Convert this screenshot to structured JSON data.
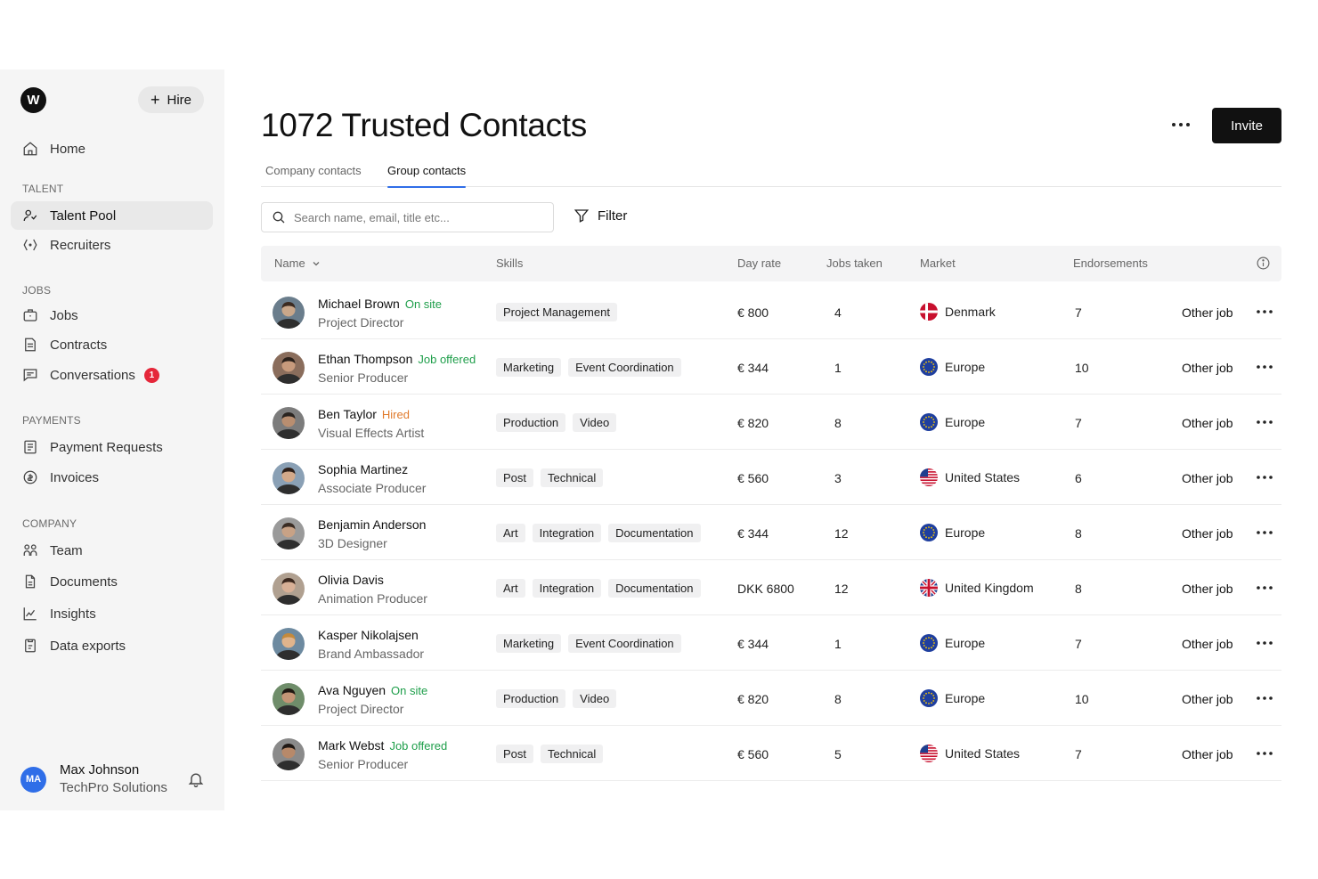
{
  "sidebar": {
    "logo_letter": "W",
    "hire_label": "Hire",
    "items": [
      {
        "label": "Home",
        "icon": "home-icon"
      },
      {
        "label": "Talent Pool",
        "icon": "talent-icon"
      },
      {
        "label": "Recruiters",
        "icon": "recruiters-icon"
      },
      {
        "label": "Jobs",
        "icon": "briefcase-icon"
      },
      {
        "label": "Contracts",
        "icon": "contract-icon"
      },
      {
        "label": "Conversations",
        "icon": "chat-icon",
        "badge": "1"
      },
      {
        "label": "Payment Requests",
        "icon": "payment-request-icon"
      },
      {
        "label": "Invoices",
        "icon": "invoice-icon"
      },
      {
        "label": "Team",
        "icon": "team-icon"
      },
      {
        "label": "Documents",
        "icon": "document-icon"
      },
      {
        "label": "Insights",
        "icon": "chart-icon"
      },
      {
        "label": "Data exports",
        "icon": "export-icon"
      }
    ],
    "sections": {
      "talent": "TALENT",
      "jobs": "JOBS",
      "payments": "PAYMENTS",
      "company": "COMPANY"
    },
    "user": {
      "initials": "MA",
      "name": "Max Johnson",
      "org": "TechPro Solutions"
    }
  },
  "header": {
    "title": "1072 Trusted Contacts",
    "invite_label": "Invite",
    "tabs": [
      {
        "label": "Company contacts",
        "active": false
      },
      {
        "label": "Group contacts",
        "active": true
      }
    ]
  },
  "toolbar": {
    "search_placeholder": "Search name, email, title etc...",
    "filter_label": "Filter"
  },
  "table": {
    "columns": {
      "name": "Name",
      "skills": "Skills",
      "day_rate": "Day rate",
      "jobs_taken": "Jobs taken",
      "market": "Market",
      "endorsements": "Endorsements"
    },
    "rows": [
      {
        "name": "Michael Brown",
        "status": "On site",
        "status_type": "onsite",
        "role": "Project Director",
        "skills": [
          "Project Management"
        ],
        "rate": "€ 800",
        "jobs": "4",
        "market": "Denmark",
        "flag": "dk",
        "endorsements": "7",
        "other": "Other job"
      },
      {
        "name": "Ethan Thompson",
        "status": "Job offered",
        "status_type": "offered",
        "role": "Senior Producer",
        "skills": [
          "Marketing",
          "Event Coordination"
        ],
        "rate": "€ 344",
        "jobs": "1",
        "market": "Europe",
        "flag": "eu",
        "endorsements": "10",
        "other": "Other job"
      },
      {
        "name": "Ben Taylor",
        "status": "Hired",
        "status_type": "hired",
        "role": "Visual Effects Artist",
        "skills": [
          "Production",
          "Video"
        ],
        "rate": "€ 820",
        "jobs": "8",
        "market": "Europe",
        "flag": "eu",
        "endorsements": "7",
        "other": "Other job"
      },
      {
        "name": "Sophia Martinez",
        "status": "",
        "status_type": "",
        "role": "Associate Producer",
        "skills": [
          "Post",
          "Technical"
        ],
        "rate": "€ 560",
        "jobs": "3",
        "market": "United States",
        "flag": "us",
        "endorsements": "6",
        "other": "Other job"
      },
      {
        "name": "Benjamin Anderson",
        "status": "",
        "status_type": "",
        "role": "3D Designer",
        "skills": [
          "Art",
          "Integration",
          "Documentation"
        ],
        "rate": "€ 344",
        "jobs": "12",
        "market": "Europe",
        "flag": "eu",
        "endorsements": "8",
        "other": "Other job"
      },
      {
        "name": "Olivia Davis",
        "status": "",
        "status_type": "",
        "role": "Animation Producer",
        "skills": [
          "Art",
          "Integration",
          "Documentation"
        ],
        "rate": "DKK 6800",
        "jobs": "12",
        "market": "United Kingdom",
        "flag": "uk",
        "endorsements": "8",
        "other": "Other job"
      },
      {
        "name": "Kasper Nikolajsen",
        "status": "",
        "status_type": "",
        "role": "Brand Ambassador",
        "skills": [
          "Marketing",
          "Event Coordination"
        ],
        "rate": "€ 344",
        "jobs": "1",
        "market": "Europe",
        "flag": "eu",
        "endorsements": "7",
        "other": "Other job"
      },
      {
        "name": "Ava Nguyen",
        "status": "On site",
        "status_type": "onsite",
        "role": "Project Director",
        "skills": [
          "Production",
          "Video"
        ],
        "rate": "€ 820",
        "jobs": "8",
        "market": "Europe",
        "flag": "eu",
        "endorsements": "10",
        "other": "Other job"
      },
      {
        "name": "Mark Webst",
        "status": "Job offered",
        "status_type": "offered",
        "role": "Senior Producer",
        "skills": [
          "Post",
          "Technical"
        ],
        "rate": "€ 560",
        "jobs": "5",
        "market": "United States",
        "flag": "us",
        "endorsements": "7",
        "other": "Other job"
      }
    ]
  },
  "colors": {
    "accent": "#2f6ee8",
    "onsite": "#1e9e4a",
    "hired": "#e07a2b",
    "badge": "#e5273a"
  }
}
